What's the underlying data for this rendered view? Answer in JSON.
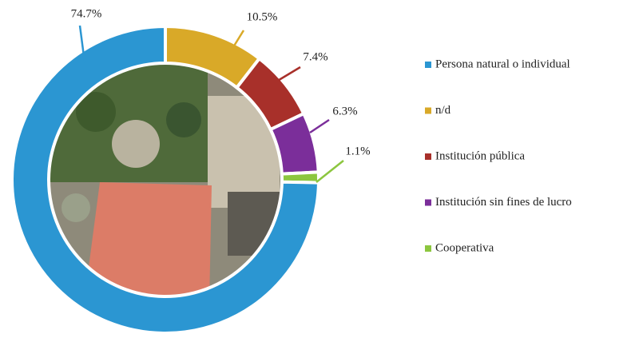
{
  "chart_data": {
    "type": "donut",
    "categories": [
      "Persona natural o individual",
      "n/d",
      "Institución pública",
      "Institución sin fines de lucro",
      "Cooperativa"
    ],
    "values": [
      74.7,
      10.5,
      7.4,
      6.3,
      1.1
    ],
    "value_labels": [
      "74.7%",
      "10.5%",
      "7.4%",
      "6.3%",
      "1.1%"
    ],
    "colors": [
      "#2b96d2",
      "#d9a928",
      "#a8302a",
      "#7b2e9a",
      "#8cc63f"
    ],
    "legend": "right"
  }
}
